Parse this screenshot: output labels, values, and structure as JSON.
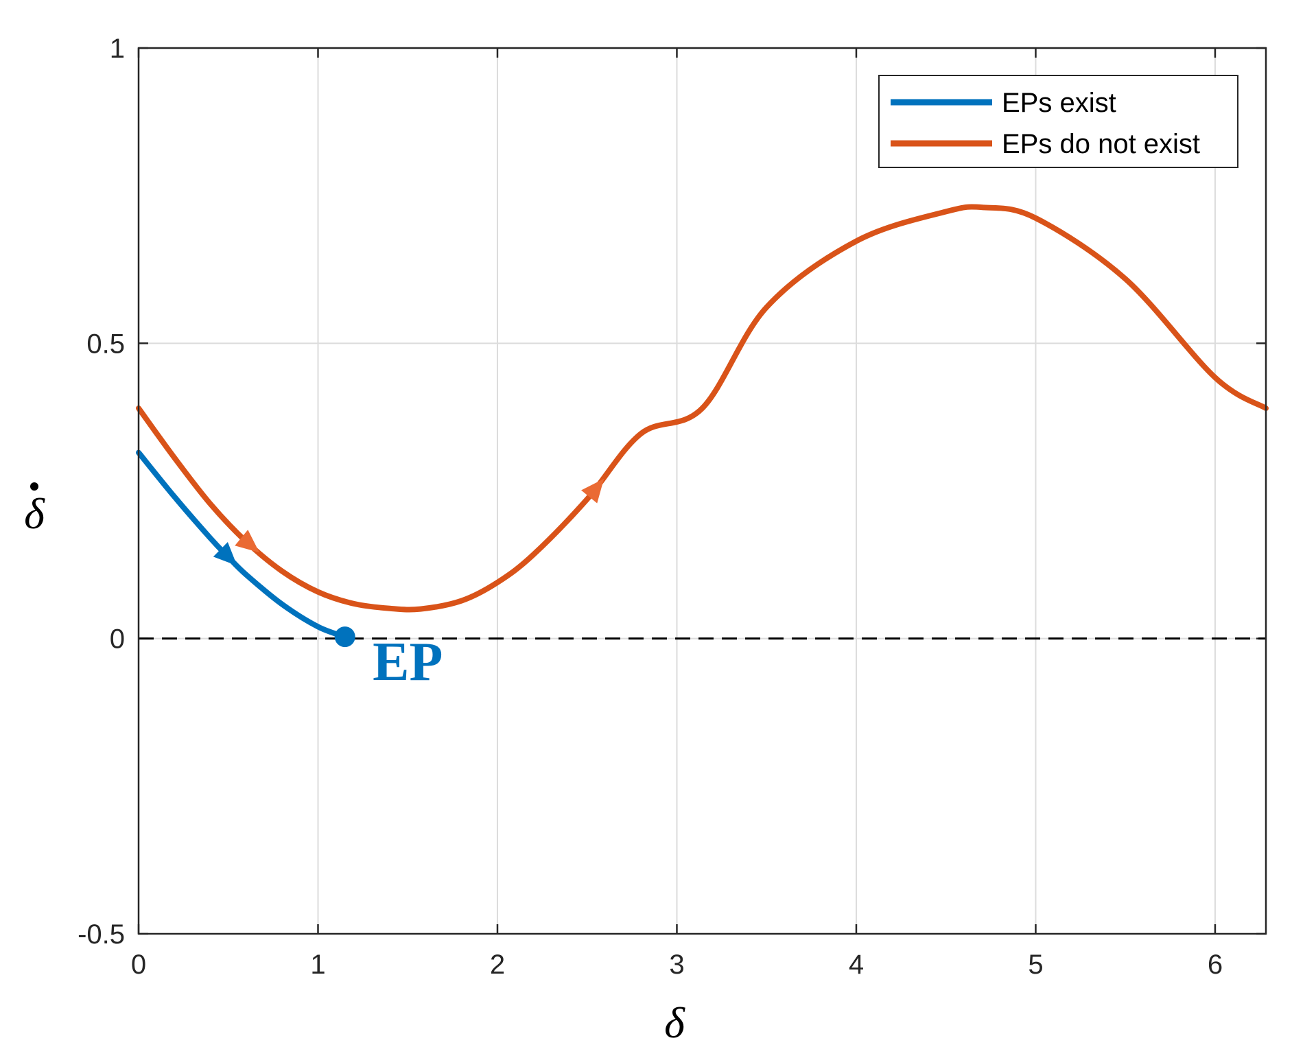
{
  "chart_data": {
    "type": "line",
    "title": "",
    "xlabel": "δ",
    "ylabel": "δ̇",
    "xlim": [
      0,
      6.2832
    ],
    "ylim": [
      -0.5,
      1
    ],
    "grid": true,
    "xticks": [
      0,
      1,
      2,
      3,
      4,
      5,
      6
    ],
    "xtick_labels": [
      "0",
      "1",
      "2",
      "3",
      "4",
      "5",
      "6"
    ],
    "yticks": [
      -0.5,
      0,
      0.5,
      1
    ],
    "ytick_labels": [
      "-0.5",
      "0",
      "0.5",
      "1"
    ],
    "legend_position": "top-right",
    "series": [
      {
        "name": "EPs exist",
        "color": "#0072BD",
        "x": [
          0,
          0.2,
          0.4,
          0.5,
          0.6,
          0.8,
          1.0,
          1.15
        ],
        "y": [
          0.315,
          0.24,
          0.17,
          0.138,
          0.108,
          0.058,
          0.02,
          0.003
        ],
        "arrow_at_x": [
          0.5
        ],
        "endpoint": {
          "x": 1.15,
          "y": 0.003
        }
      },
      {
        "name": "EPs do not exist",
        "color": "#D95319",
        "x": [
          0,
          0.2,
          0.4,
          0.6,
          0.8,
          1.0,
          1.2,
          1.4,
          1.5708,
          1.8,
          2.0,
          2.2,
          2.5,
          2.8,
          3.1416,
          3.5,
          4.0,
          4.5,
          4.7124,
          5.0,
          5.5,
          6.0,
          6.2832
        ],
        "y": [
          0.39,
          0.306,
          0.228,
          0.164,
          0.114,
          0.079,
          0.059,
          0.051,
          0.05,
          0.064,
          0.095,
          0.142,
          0.236,
          0.347,
          0.39,
          0.561,
          0.673,
          0.723,
          0.73,
          0.712,
          0.609,
          0.442,
          0.39
        ],
        "arrow_at_x": [
          0.62,
          2.55
        ]
      },
      {
        "name": "",
        "style": "dashed",
        "color": "#000000",
        "x": [
          0,
          6.2832
        ],
        "y": [
          0,
          0
        ]
      }
    ],
    "annotations": [
      {
        "text": "EP",
        "x": 1.5,
        "y": -0.07,
        "color": "#0072BD"
      }
    ]
  }
}
